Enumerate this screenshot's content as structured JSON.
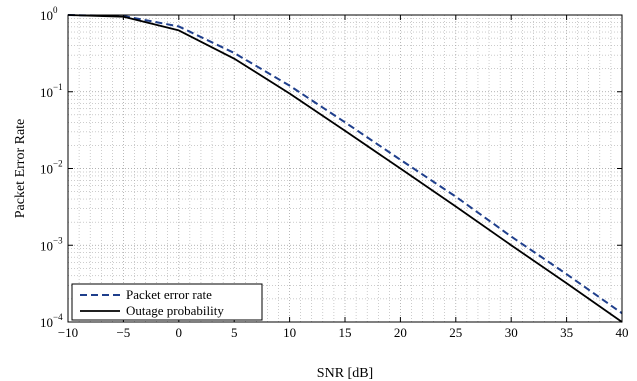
{
  "chart_data": {
    "type": "line",
    "title": "",
    "xlabel": "SNR [dB]",
    "ylabel": "Packet Error Rate",
    "xlim": [
      -10,
      40
    ],
    "ylim": [
      0.0001,
      1
    ],
    "yscale": "log",
    "grid": true,
    "legend_position": "bottom-left",
    "x_ticks": [
      "−10",
      "−5",
      "0",
      "5",
      "10",
      "15",
      "20",
      "25",
      "30",
      "35",
      "40"
    ],
    "y_ticks": [
      {
        "base": "10",
        "exp": "0"
      },
      {
        "base": "10",
        "exp": "−1"
      },
      {
        "base": "10",
        "exp": "−2"
      },
      {
        "base": "10",
        "exp": "−3"
      },
      {
        "base": "10",
        "exp": "−4"
      }
    ],
    "series": [
      {
        "name": "Packet error rate",
        "color": "#1f3f8c",
        "style": "dashed",
        "x": [
          -10,
          -5,
          0,
          5,
          10,
          15,
          20,
          25,
          30,
          35,
          40
        ],
        "y": [
          1.0,
          0.97,
          0.71,
          0.32,
          0.12,
          0.04,
          0.013,
          0.0043,
          0.0013,
          0.00042,
          0.00013
        ]
      },
      {
        "name": "Outage probability",
        "color": "#000000",
        "style": "solid",
        "x": [
          -10,
          -5,
          0,
          5,
          10,
          15,
          20,
          25,
          30,
          35,
          40
        ],
        "y": [
          1.0,
          0.95,
          0.63,
          0.27,
          0.095,
          0.031,
          0.01,
          0.0032,
          0.001,
          0.00032,
          0.0001
        ]
      }
    ]
  }
}
